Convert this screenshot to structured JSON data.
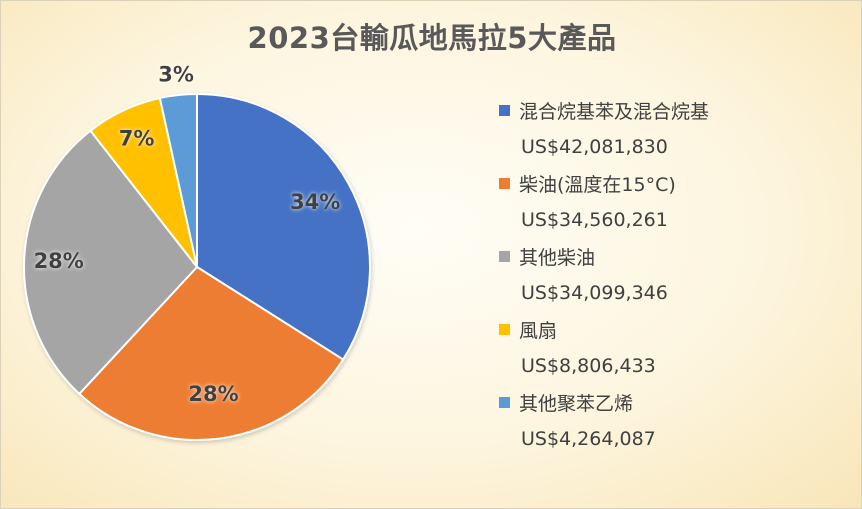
{
  "chart_data": {
    "type": "pie",
    "title": "2023台輸瓜地馬拉5大產品",
    "categories": [
      "混合烷基苯及混合烷基",
      "柴油(溫度在15°C)",
      "其他柴油",
      "風扇",
      "其他聚苯乙烯"
    ],
    "values": [
      42081830,
      34560261,
      34099346,
      8806433,
      4264087
    ],
    "value_labels": [
      "US$42,081,830",
      "US$34,560,261",
      "US$34,099,346",
      "US$8,806,433",
      "US$4,264,087"
    ],
    "percent_labels": [
      "34%",
      "28%",
      "28%",
      "7%",
      "3%"
    ],
    "colors": [
      "#4472C4",
      "#ED7D31",
      "#A5A5A5",
      "#FFC000",
      "#5B9BD5"
    ],
    "legend_position": "right",
    "start_angle": "12 o'clock",
    "direction": "clockwise"
  }
}
